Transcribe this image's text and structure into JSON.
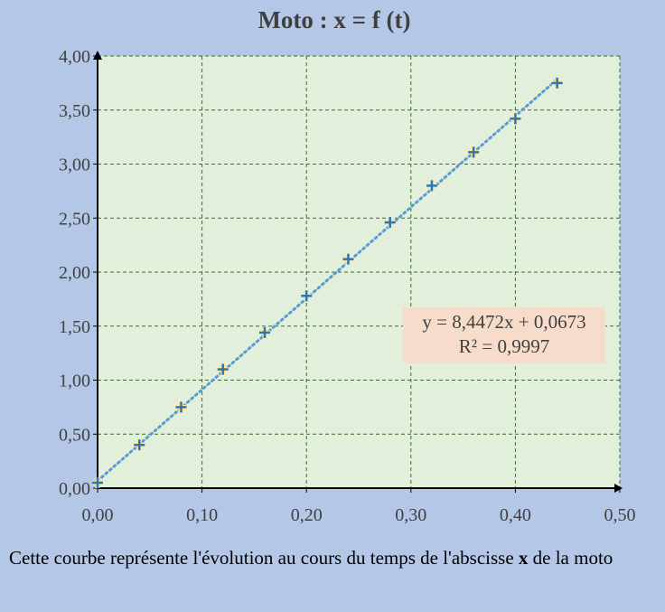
{
  "chart_data": {
    "type": "scatter",
    "title": "Moto : x = f (t)",
    "xlabel": "",
    "ylabel": "",
    "xlim": [
      0,
      0.5
    ],
    "ylim": [
      0,
      4
    ],
    "x_ticks": [
      "0,00",
      "0,10",
      "0,20",
      "0,30",
      "0,40",
      "0,50"
    ],
    "y_ticks": [
      "0,00",
      "0,50",
      "1,00",
      "1,50",
      "2,00",
      "2,50",
      "3,00",
      "3,50",
      "4,00"
    ],
    "grid": true,
    "series": [
      {
        "x": [
          0.0,
          0.04,
          0.08,
          0.12,
          0.16,
          0.2,
          0.24,
          0.28,
          0.32,
          0.36,
          0.4,
          0.44
        ],
        "y": [
          0.05,
          0.4,
          0.75,
          1.1,
          1.44,
          1.78,
          2.12,
          2.46,
          2.8,
          3.11,
          3.42,
          3.75
        ]
      }
    ],
    "trendline": {
      "type": "linear",
      "slope": 8.4472,
      "intercept": 0.0673,
      "equation": "y = 8,4472x + 0,0673",
      "r2": "R² = 0,9997"
    },
    "colors": {
      "page_bg": "#b4c7e7",
      "plot_bg": "#e2efda",
      "grid": "#3b6e2a",
      "marker": "#2e75b6",
      "marker_halo": "#ffe699",
      "trendline": "#5b9bd5",
      "label_bg": "#f8dccb"
    }
  },
  "caption": {
    "text_before": "Cette courbe représente l'évolution au cours du temps de l'abscisse ",
    "bold": "x",
    "text_after": " de la moto"
  }
}
